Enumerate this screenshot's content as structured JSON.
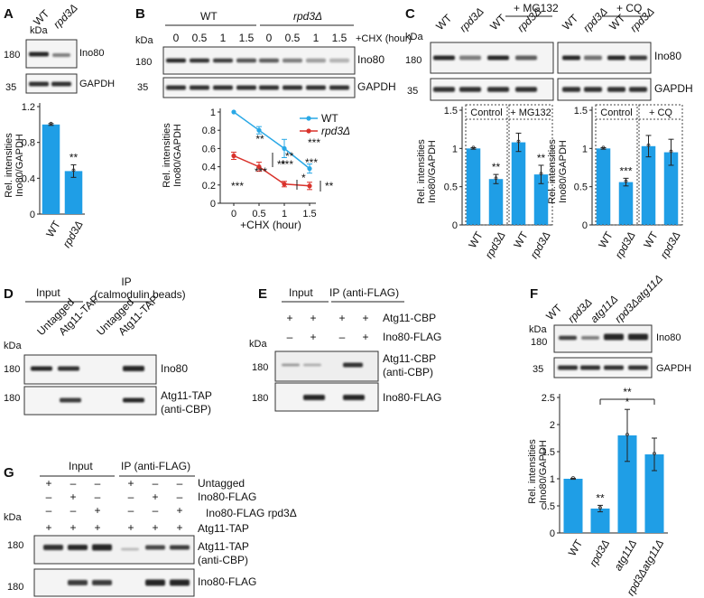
{
  "colors": {
    "bar": "#1f9ee6",
    "wt_line": "#29a8e6",
    "rpd3_line": "#d9322b",
    "band": "#1a1a1a",
    "blot_bg": "#dedede"
  },
  "panels": {
    "A": "A",
    "B": "B",
    "C": "C",
    "D": "D",
    "E": "E",
    "F": "F",
    "G": "G"
  },
  "common": {
    "kda": "kDa",
    "wt": "WT",
    "rpd3": "rpd3Δ",
    "ino80": "Ino80",
    "gapdh": "GAPDH",
    "mw180": "180",
    "mw35": "35",
    "ylabel_line1": "Rel. intensities",
    "ylabel_line2": "Ino80/GAPDH",
    "plus": "+",
    "minus": "–",
    "input": "Input"
  },
  "panel_a": {
    "lanes": [
      "WT",
      "rpd3Δ"
    ],
    "sig": [
      "",
      "**"
    ],
    "yticks": [
      "0",
      "0.4",
      "0.8",
      "1.2"
    ]
  },
  "panel_b": {
    "timepoints": [
      "0",
      "0.5",
      "1",
      "1.5"
    ],
    "cond_label": "+CHX (hour)",
    "xlabel": "+CHX (hour)",
    "yticks": [
      "0",
      "0.2",
      "0.4",
      "0.6",
      "0.8",
      "1"
    ],
    "legend": [
      "WT",
      "rpd3Δ"
    ],
    "stars": [
      "***",
      "***",
      "***",
      "***",
      "**",
      "**",
      "*",
      "***",
      "**",
      "**"
    ]
  },
  "panel_c": {
    "mg132": "+ MG132",
    "cq": "+ CQ",
    "control": "Control",
    "lanes": [
      "WT",
      "rpd3Δ",
      "WT",
      "rpd3Δ"
    ],
    "sig": [
      "**",
      "**",
      "***"
    ],
    "yticks": [
      "0",
      "0.5",
      "1",
      "1.5"
    ]
  },
  "panel_d": {
    "ip": "IP",
    "ip_sub": "(calmodulin beads)",
    "lanes": [
      "Untagged",
      "Atg11-TAP",
      "Untagged",
      "Atg11-TAP"
    ],
    "band1": "Ino80",
    "band2_l1": "Atg11-TAP",
    "band2_l2": "(anti-CBP)"
  },
  "panel_e": {
    "ip": "IP (anti-FLAG)",
    "row1_label": "Atg11-CBP",
    "row1": [
      "+",
      "+",
      "+",
      "+"
    ],
    "row2_label": "Ino80-FLAG",
    "row2": [
      "–",
      "+",
      "–",
      "+"
    ],
    "band1_l1": "Atg11-CBP",
    "band1_l2": "(anti-CBP)",
    "band2": "Ino80-FLAG"
  },
  "panel_f": {
    "lanes": [
      "WT",
      "rpd3Δ",
      "atg11Δ",
      "rpd3Δatg11Δ"
    ],
    "sig": [
      "**",
      "*",
      "**"
    ],
    "yticks": [
      "0",
      "0.5",
      "1",
      "1.5",
      "2",
      "2.5"
    ]
  },
  "panel_g": {
    "ip": "IP (anti-FLAG)",
    "rows": [
      {
        "label": "Untagged",
        "signs": [
          "+",
          "–",
          "–",
          "+",
          "–",
          "–"
        ]
      },
      {
        "label": "Ino80-FLAG",
        "signs": [
          "–",
          "+",
          "–",
          "–",
          "+",
          "–"
        ]
      },
      {
        "label": "Ino80-FLAG rpd3Δ",
        "signs": [
          "–",
          "–",
          "+",
          "–",
          "–",
          "+"
        ]
      },
      {
        "label": "Atg11-TAP",
        "signs": [
          "+",
          "+",
          "+",
          "+",
          "+",
          "+"
        ]
      }
    ],
    "band1_l1": "Atg11-TAP",
    "band1_l2": "(anti-CBP)",
    "band2": "Ino80-FLAG"
  },
  "chart_data": [
    {
      "type": "bar",
      "id": "A",
      "title": "",
      "categories": [
        "WT",
        "rpd3Δ"
      ],
      "values": [
        1.0,
        0.48
      ],
      "errors": [
        0.01,
        0.07
      ],
      "ylabel": "Rel. intensities Ino80/GAPDH",
      "ylim": [
        0,
        1.2
      ],
      "significance": [
        "",
        "**"
      ]
    },
    {
      "type": "line",
      "id": "B",
      "x": [
        0,
        0.5,
        1,
        1.5
      ],
      "xlabel": "+CHX (hour)",
      "ylabel": "Rel. intensities Ino80/GAPDH",
      "ylim": [
        0,
        1
      ],
      "series": [
        {
          "name": "WT",
          "values": [
            1.0,
            0.8,
            0.6,
            0.38
          ],
          "errors": [
            0.0,
            0.04,
            0.1,
            0.05
          ]
        },
        {
          "name": "rpd3Δ",
          "values": [
            0.52,
            0.4,
            0.21,
            0.19
          ],
          "errors": [
            0.04,
            0.05,
            0.03,
            0.04
          ]
        }
      ]
    },
    {
      "type": "bar",
      "id": "C-MG132",
      "categories": [
        "WT",
        "rpd3Δ",
        "WT",
        "rpd3Δ"
      ],
      "groups": [
        "Control",
        "Control",
        "+ MG132",
        "+ MG132"
      ],
      "values": [
        1.0,
        0.6,
        1.08,
        0.66
      ],
      "errors": [
        0.01,
        0.06,
        0.12,
        0.12
      ],
      "ylim": [
        0,
        1.5
      ]
    },
    {
      "type": "bar",
      "id": "C-CQ",
      "categories": [
        "WT",
        "rpd3Δ",
        "WT",
        "rpd3Δ"
      ],
      "groups": [
        "Control",
        "Control",
        "+ CQ",
        "+ CQ"
      ],
      "values": [
        1.0,
        0.56,
        1.03,
        0.95
      ],
      "errors": [
        0.01,
        0.05,
        0.14,
        0.17
      ],
      "ylim": [
        0,
        1.5
      ]
    },
    {
      "type": "bar",
      "id": "F",
      "categories": [
        "WT",
        "rpd3Δ",
        "atg11Δ",
        "rpd3Δatg11Δ"
      ],
      "values": [
        1.0,
        0.45,
        1.8,
        1.45
      ],
      "errors": [
        0.01,
        0.06,
        0.48,
        0.3
      ],
      "ylabel": "Rel. intensities Ino80/GAPDH",
      "ylim": [
        0,
        2.5
      ]
    }
  ]
}
